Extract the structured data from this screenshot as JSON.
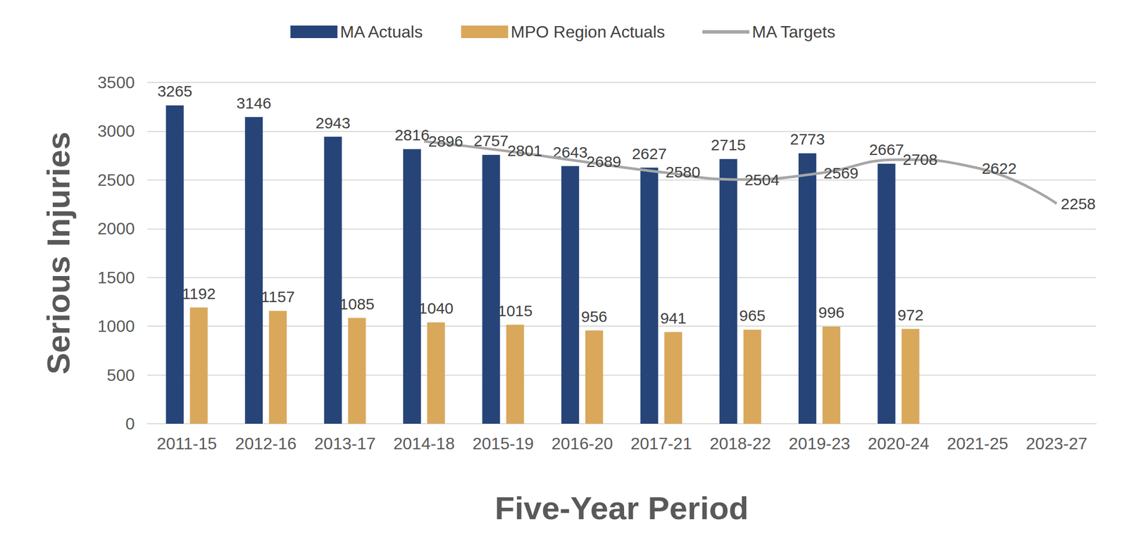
{
  "chart_data": {
    "type": "bar",
    "x_label": "Five-Year Period",
    "y_label": "Serious Injuries",
    "categories": [
      "2011-15",
      "2012-16",
      "2013-17",
      "2014-18",
      "2015-19",
      "2016-20",
      "2017-21",
      "2018-22",
      "2019-23",
      "2020-24",
      "2021-25",
      "2023-27"
    ],
    "series": [
      {
        "name": "MA Actuals",
        "type": "bar",
        "color": "#264478",
        "values": [
          3265,
          3146,
          2943,
          2816,
          2757,
          2643,
          2627,
          2715,
          2773,
          2667,
          null,
          null
        ]
      },
      {
        "name": "MPO Region Actuals",
        "type": "bar",
        "color": "#D9A85B",
        "values": [
          1192,
          1157,
          1085,
          1040,
          1015,
          956,
          941,
          965,
          996,
          972,
          null,
          null
        ]
      },
      {
        "name": "MA Targets",
        "type": "line",
        "color": "#A6A6A6",
        "values": [
          null,
          null,
          null,
          2896,
          2801,
          2689,
          2580,
          2504,
          2569,
          2708,
          2622,
          2258
        ]
      }
    ],
    "ylim": [
      0,
      3500
    ],
    "yticks": [
      0,
      500,
      1000,
      1500,
      2000,
      2500,
      3000,
      3500
    ],
    "grid": true,
    "legend": "top",
    "data_labels": true
  }
}
